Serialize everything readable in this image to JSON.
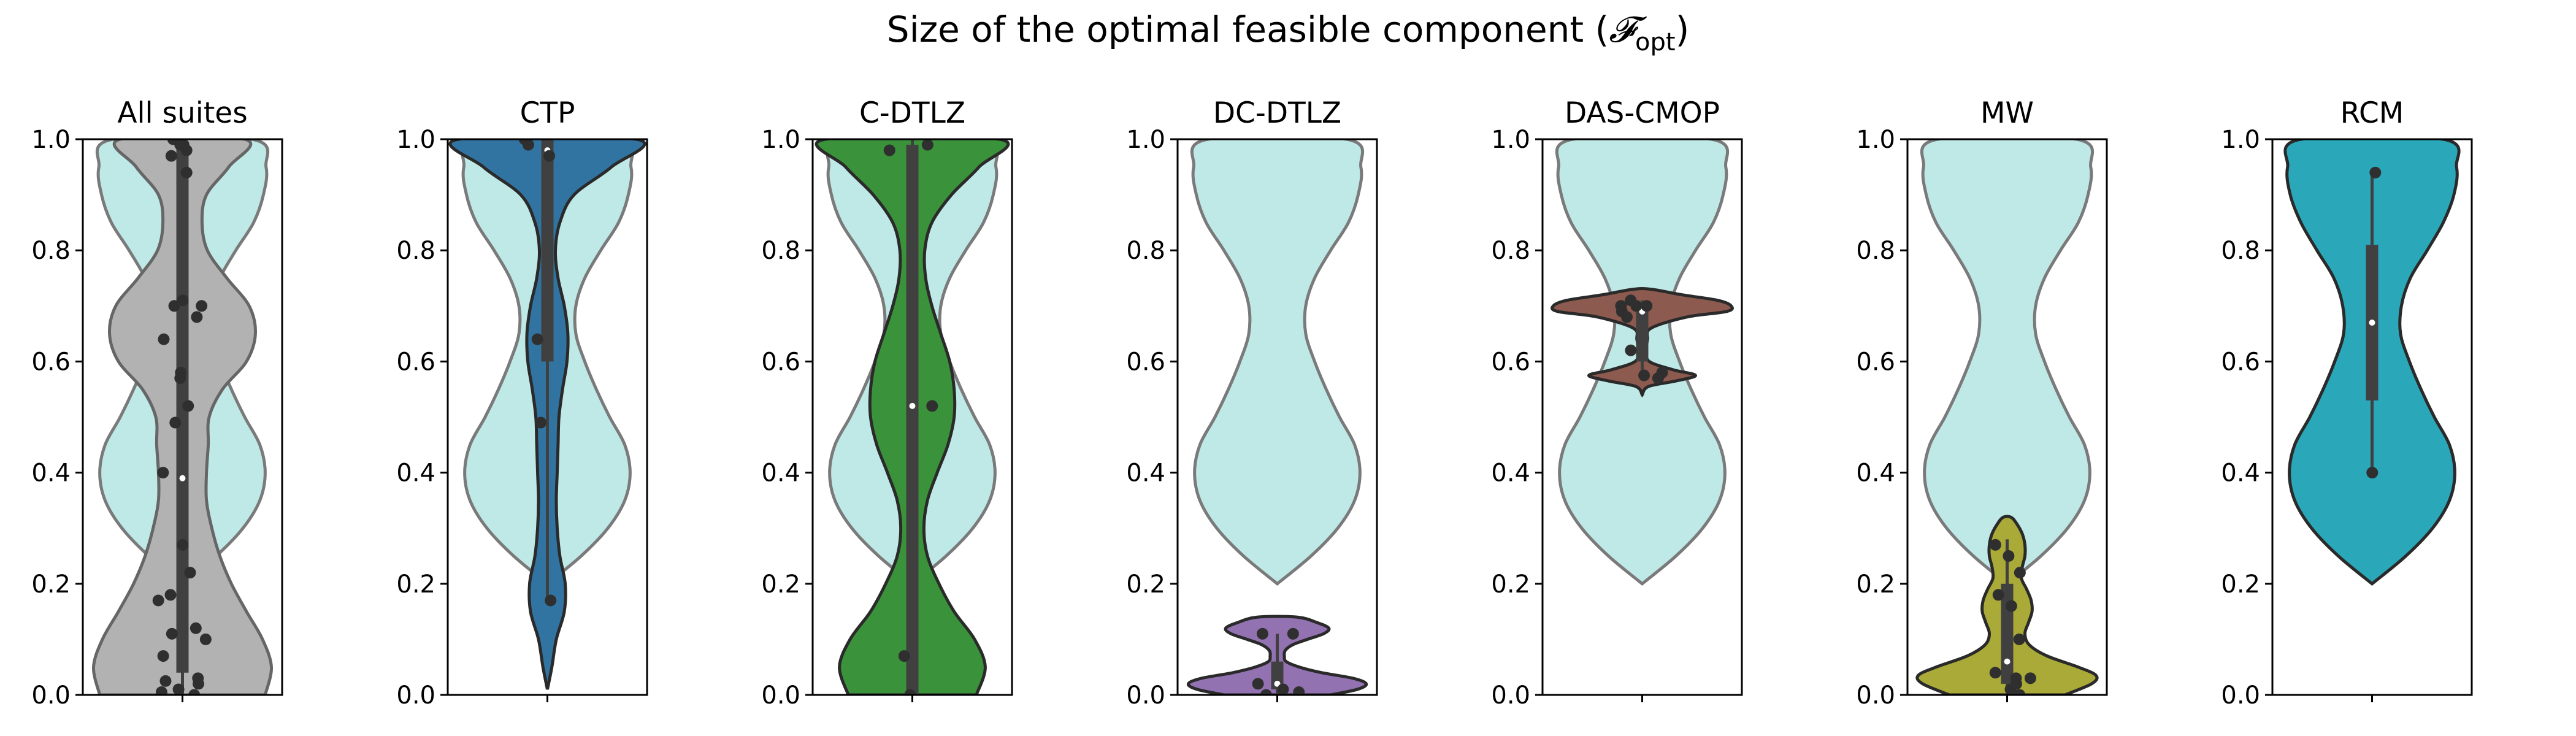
{
  "figure": {
    "title": "Size of the optimal feasible component (",
    "title_symbol": "𝓕",
    "title_sub": "opt",
    "title_close": ")"
  },
  "colors": {
    "reference_fill": "#bfe9e7",
    "reference_stroke": "#7a7a7a",
    "box": "#404040",
    "points": "#2f2f2f"
  },
  "chart_data": [
    {
      "type": "violin",
      "title": "All suites",
      "ylim": [
        0,
        1
      ],
      "yticks": [
        "0.0",
        "0.2",
        "0.4",
        "0.6",
        "0.8",
        "1.0"
      ],
      "fill": "#b2b2b2",
      "stroke": "#666666",
      "cut": [
        0.0,
        1.0
      ],
      "density": [
        [
          0.0,
          0.93
        ],
        [
          0.05,
          1.0
        ],
        [
          0.1,
          0.9
        ],
        [
          0.15,
          0.72
        ],
        [
          0.2,
          0.55
        ],
        [
          0.25,
          0.42
        ],
        [
          0.3,
          0.33
        ],
        [
          0.35,
          0.27
        ],
        [
          0.4,
          0.27
        ],
        [
          0.45,
          0.29
        ],
        [
          0.5,
          0.3
        ],
        [
          0.55,
          0.45
        ],
        [
          0.6,
          0.72
        ],
        [
          0.65,
          0.82
        ],
        [
          0.7,
          0.75
        ],
        [
          0.75,
          0.5
        ],
        [
          0.8,
          0.28
        ],
        [
          0.85,
          0.22
        ],
        [
          0.9,
          0.27
        ],
        [
          0.95,
          0.52
        ],
        [
          1.0,
          0.7
        ]
      ],
      "box": {
        "q1": 0.04,
        "median": 0.39,
        "q3": 0.99,
        "whisker_low": 0.0,
        "whisker_high": 1.0
      },
      "points": [
        0.0,
        0.005,
        0.01,
        0.02,
        0.025,
        0.03,
        0.07,
        0.1,
        0.11,
        0.12,
        0.17,
        0.18,
        0.22,
        0.27,
        0.4,
        0.49,
        0.52,
        0.57,
        0.58,
        0.64,
        0.68,
        0.7,
        0.7,
        0.71,
        0.94,
        0.97,
        0.98,
        0.99,
        0.99,
        1.0
      ]
    },
    {
      "type": "violin",
      "title": "CTP",
      "ylim": [
        0,
        1
      ],
      "yticks": [
        "0.0",
        "0.2",
        "0.4",
        "0.6",
        "0.8",
        "1.0"
      ],
      "fill": "#3274a1",
      "stroke": "#2a2a2a",
      "cut": [
        0.01,
        1.0
      ],
      "density": [
        [
          0.01,
          0.0
        ],
        [
          0.05,
          0.05
        ],
        [
          0.1,
          0.1
        ],
        [
          0.15,
          0.19
        ],
        [
          0.2,
          0.2
        ],
        [
          0.25,
          0.14
        ],
        [
          0.3,
          0.11
        ],
        [
          0.35,
          0.1
        ],
        [
          0.4,
          0.11
        ],
        [
          0.45,
          0.12
        ],
        [
          0.5,
          0.13
        ],
        [
          0.55,
          0.17
        ],
        [
          0.6,
          0.22
        ],
        [
          0.65,
          0.23
        ],
        [
          0.7,
          0.19
        ],
        [
          0.75,
          0.12
        ],
        [
          0.8,
          0.09
        ],
        [
          0.85,
          0.14
        ],
        [
          0.9,
          0.3
        ],
        [
          0.95,
          0.72
        ],
        [
          1.0,
          1.0
        ]
      ],
      "box": {
        "q1": 0.6,
        "median": 0.98,
        "q3": 1.0,
        "whisker_low": 0.17,
        "whisker_high": 1.0
      },
      "points": [
        0.17,
        0.49,
        0.64,
        0.97,
        0.99,
        1.0
      ]
    },
    {
      "type": "violin",
      "title": "C-DTLZ",
      "ylim": [
        0,
        1
      ],
      "yticks": [
        "0.0",
        "0.2",
        "0.4",
        "0.6",
        "0.8",
        "1.0"
      ],
      "fill": "#3a923a",
      "stroke": "#2a2a2a",
      "cut": [
        0.0,
        1.0
      ],
      "density": [
        [
          0.0,
          0.72
        ],
        [
          0.05,
          0.82
        ],
        [
          0.1,
          0.7
        ],
        [
          0.15,
          0.47
        ],
        [
          0.2,
          0.3
        ],
        [
          0.25,
          0.17
        ],
        [
          0.3,
          0.13
        ],
        [
          0.35,
          0.17
        ],
        [
          0.4,
          0.28
        ],
        [
          0.45,
          0.4
        ],
        [
          0.5,
          0.47
        ],
        [
          0.55,
          0.47
        ],
        [
          0.6,
          0.42
        ],
        [
          0.65,
          0.32
        ],
        [
          0.7,
          0.22
        ],
        [
          0.75,
          0.15
        ],
        [
          0.8,
          0.14
        ],
        [
          0.85,
          0.22
        ],
        [
          0.9,
          0.44
        ],
        [
          0.95,
          0.75
        ],
        [
          1.0,
          0.98
        ]
      ],
      "box": {
        "q1": 0.0,
        "median": 0.52,
        "q3": 0.99,
        "whisker_low": 0.0,
        "whisker_high": 1.0
      },
      "points": [
        0.0,
        0.07,
        0.52,
        0.98,
        0.99
      ]
    },
    {
      "type": "violin",
      "title": "DC-DTLZ",
      "ylim": [
        0,
        1
      ],
      "yticks": [
        "0.0",
        "0.2",
        "0.4",
        "0.6",
        "0.8",
        "1.0"
      ],
      "fill": "#9372b2",
      "stroke": "#2a2a2a",
      "cut": [
        0.0,
        0.14
      ],
      "density": [
        [
          0.0,
          0.6
        ],
        [
          0.01,
          0.9
        ],
        [
          0.02,
          1.0
        ],
        [
          0.03,
          0.85
        ],
        [
          0.04,
          0.5
        ],
        [
          0.05,
          0.25
        ],
        [
          0.06,
          0.1
        ],
        [
          0.07,
          0.08
        ],
        [
          0.08,
          0.09
        ],
        [
          0.09,
          0.17
        ],
        [
          0.1,
          0.34
        ],
        [
          0.11,
          0.52
        ],
        [
          0.12,
          0.58
        ],
        [
          0.13,
          0.45
        ],
        [
          0.14,
          0.22
        ]
      ],
      "box": {
        "q1": 0.01,
        "median": 0.02,
        "q3": 0.06,
        "whisker_low": 0.0,
        "whisker_high": 0.11
      },
      "points": [
        0.0,
        0.005,
        0.01,
        0.02,
        0.11,
        0.11
      ]
    },
    {
      "type": "violin",
      "title": "DAS-CMOP",
      "ylim": [
        0,
        1
      ],
      "yticks": [
        "0.0",
        "0.2",
        "0.4",
        "0.6",
        "0.8",
        "1.0"
      ],
      "fill": "#8c5a4e",
      "stroke": "#2a2a2a",
      "cut": [
        0.54,
        0.73
      ],
      "density": [
        [
          0.54,
          0.0
        ],
        [
          0.555,
          0.07
        ],
        [
          0.565,
          0.38
        ],
        [
          0.575,
          0.6
        ],
        [
          0.585,
          0.35
        ],
        [
          0.6,
          0.08
        ],
        [
          0.62,
          0.05
        ],
        [
          0.64,
          0.06
        ],
        [
          0.66,
          0.1
        ],
        [
          0.68,
          0.5
        ],
        [
          0.69,
          0.95
        ],
        [
          0.7,
          1.0
        ],
        [
          0.71,
          0.85
        ],
        [
          0.72,
          0.45
        ],
        [
          0.73,
          0.1
        ]
      ],
      "box": {
        "q1": 0.6,
        "median": 0.69,
        "q3": 0.7,
        "whisker_low": 0.58,
        "whisker_high": 0.71
      },
      "points": [
        0.57,
        0.575,
        0.58,
        0.62,
        0.68,
        0.69,
        0.7,
        0.7,
        0.7,
        0.71
      ]
    },
    {
      "type": "violin",
      "title": "MW",
      "ylim": [
        0,
        1
      ],
      "yticks": [
        "0.0",
        "0.2",
        "0.4",
        "0.6",
        "0.8",
        "1.0"
      ],
      "fill": "#a9aa37",
      "stroke": "#2a2a2a",
      "cut": [
        0.0,
        0.32
      ],
      "density": [
        [
          0.0,
          0.65
        ],
        [
          0.02,
          0.95
        ],
        [
          0.035,
          1.0
        ],
        [
          0.05,
          0.8
        ],
        [
          0.07,
          0.45
        ],
        [
          0.09,
          0.25
        ],
        [
          0.11,
          0.2
        ],
        [
          0.13,
          0.24
        ],
        [
          0.15,
          0.28
        ],
        [
          0.17,
          0.27
        ],
        [
          0.19,
          0.22
        ],
        [
          0.21,
          0.16
        ],
        [
          0.23,
          0.17
        ],
        [
          0.25,
          0.2
        ],
        [
          0.27,
          0.2
        ],
        [
          0.29,
          0.17
        ],
        [
          0.31,
          0.1
        ],
        [
          0.32,
          0.04
        ]
      ],
      "box": {
        "q1": 0.02,
        "median": 0.06,
        "q3": 0.2,
        "whisker_low": 0.0,
        "whisker_high": 0.28
      },
      "points": [
        0.0,
        0.01,
        0.02,
        0.03,
        0.03,
        0.04,
        0.1,
        0.16,
        0.18,
        0.22,
        0.25,
        0.27
      ]
    },
    {
      "type": "violin",
      "title": "RCM",
      "ylim": [
        0,
        1
      ],
      "yticks": [
        "0.0",
        "0.2",
        "0.4",
        "0.6",
        "0.8",
        "1.0"
      ],
      "fill": "#2aa8ba",
      "stroke": "#2a2a2a",
      "cut": [
        0.2,
        1.0
      ],
      "density": [
        [
          0.2,
          0.0
        ],
        [
          0.25,
          0.38
        ],
        [
          0.3,
          0.68
        ],
        [
          0.35,
          0.87
        ],
        [
          0.4,
          0.93
        ],
        [
          0.45,
          0.87
        ],
        [
          0.5,
          0.7
        ],
        [
          0.55,
          0.55
        ],
        [
          0.6,
          0.42
        ],
        [
          0.65,
          0.32
        ],
        [
          0.7,
          0.33
        ],
        [
          0.75,
          0.43
        ],
        [
          0.8,
          0.62
        ],
        [
          0.85,
          0.8
        ],
        [
          0.9,
          0.92
        ],
        [
          0.95,
          0.95
        ],
        [
          1.0,
          0.8
        ]
      ],
      "box": {
        "q1": 0.53,
        "median": 0.67,
        "q3": 0.81,
        "whisker_low": 0.39,
        "whisker_high": 0.94
      },
      "points": [
        0.4,
        0.94
      ]
    }
  ],
  "reference_violin": {
    "cut": [
      0.2,
      1.0
    ],
    "density": [
      [
        0.2,
        0.0
      ],
      [
        0.25,
        0.38
      ],
      [
        0.3,
        0.68
      ],
      [
        0.35,
        0.87
      ],
      [
        0.4,
        0.93
      ],
      [
        0.45,
        0.87
      ],
      [
        0.5,
        0.7
      ],
      [
        0.55,
        0.55
      ],
      [
        0.6,
        0.42
      ],
      [
        0.65,
        0.32
      ],
      [
        0.7,
        0.32
      ],
      [
        0.75,
        0.42
      ],
      [
        0.8,
        0.6
      ],
      [
        0.85,
        0.8
      ],
      [
        0.9,
        0.91
      ],
      [
        0.95,
        0.94
      ],
      [
        1.0,
        0.78
      ]
    ]
  }
}
